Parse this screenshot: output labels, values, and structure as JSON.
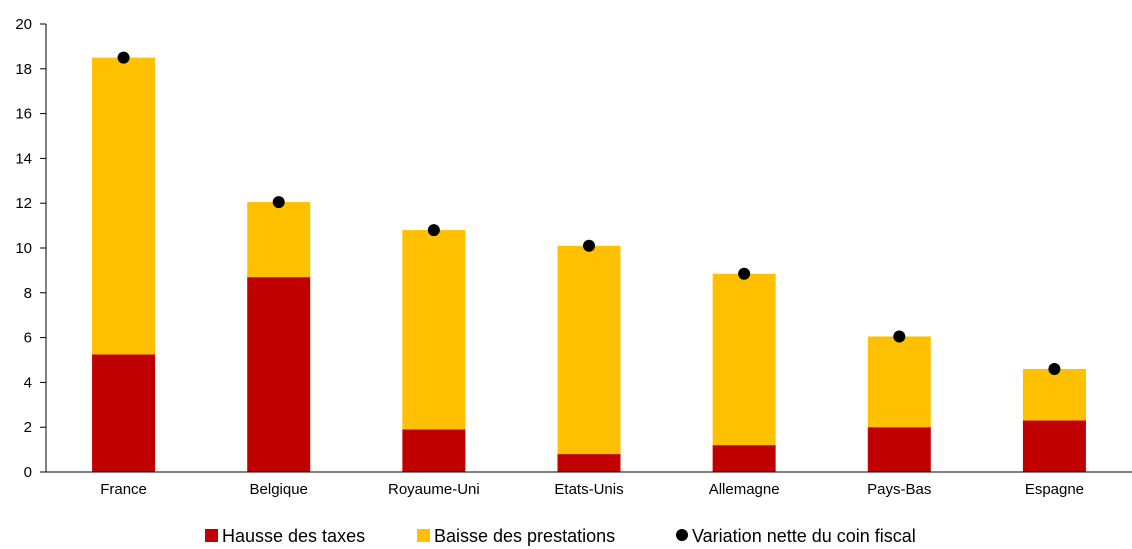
{
  "chart_data": {
    "type": "bar",
    "stacked": true,
    "categories": [
      "France",
      "Belgique",
      "Royaume-Uni",
      "Etats-Unis",
      "Allemagne",
      "Pays-Bas",
      "Espagne"
    ],
    "series": [
      {
        "name": "Hausse des taxes",
        "values": [
          5.25,
          8.7,
          1.9,
          0.8,
          1.2,
          2.0,
          2.3
        ],
        "color": "#c00000",
        "kind": "bar"
      },
      {
        "name": "Baisse des prestations",
        "values": [
          13.25,
          3.35,
          8.9,
          9.3,
          7.65,
          4.05,
          2.3
        ],
        "color": "#ffc000",
        "kind": "bar"
      },
      {
        "name": "Variation nette du coin fiscal",
        "values": [
          18.5,
          12.05,
          10.8,
          10.1,
          8.85,
          6.05,
          4.6
        ],
        "color": "#000000",
        "kind": "marker"
      }
    ],
    "y_ticks": [
      "0",
      "2",
      "4",
      "6",
      "8",
      "10",
      "12",
      "14",
      "16",
      "18",
      "20"
    ],
    "ylim": [
      0,
      20
    ],
    "grid": false,
    "legend_position": "bottom"
  }
}
